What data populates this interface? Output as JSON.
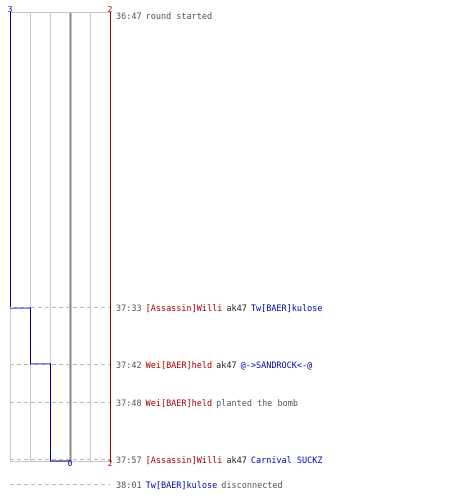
{
  "score": {
    "team_blue_top": "3",
    "team_red_top": "2",
    "team_blue_bottom": "0",
    "team_red_bottom": "2"
  },
  "colors": {
    "team_blue": "#0000aa",
    "team_red": "#aa0000",
    "timestamp": "#555555",
    "neutral_text": "#555555",
    "grid": "#c8c8c8",
    "center_line": "#888888",
    "dash_line": "#bbbbbb"
  },
  "events": [
    {
      "time": "36:47",
      "parts": [
        {
          "text": "round started",
          "team": "neutral"
        }
      ]
    },
    {
      "time": "37:33",
      "parts": [
        {
          "text": "[Assassin]Willi",
          "team": "red"
        },
        {
          "text": "ak47",
          "team": "weapon"
        },
        {
          "text": "Tw[BAER]kulose",
          "team": "blue"
        }
      ]
    },
    {
      "time": "37:42",
      "parts": [
        {
          "text": "Wei[BAER]held",
          "team": "red"
        },
        {
          "text": "ak47",
          "team": "weapon"
        },
        {
          "text": "@->SANDROCK<-@",
          "team": "blue"
        }
      ]
    },
    {
      "time": "37:48",
      "parts": [
        {
          "text": "Wei[BAER]held",
          "team": "red"
        },
        {
          "text": "planted the bomb",
          "team": "neutral"
        }
      ]
    },
    {
      "time": "37:57",
      "parts": [
        {
          "text": "[Assassin]Willi",
          "team": "red"
        },
        {
          "text": "ak47",
          "team": "weapon"
        },
        {
          "text": "Carnival SUCKZ",
          "team": "blue"
        }
      ]
    },
    {
      "time": "38:01",
      "parts": [
        {
          "text": "Tw[BAER]kulose",
          "team": "blue"
        },
        {
          "text": "disconnected",
          "team": "neutral"
        }
      ]
    }
  ]
}
